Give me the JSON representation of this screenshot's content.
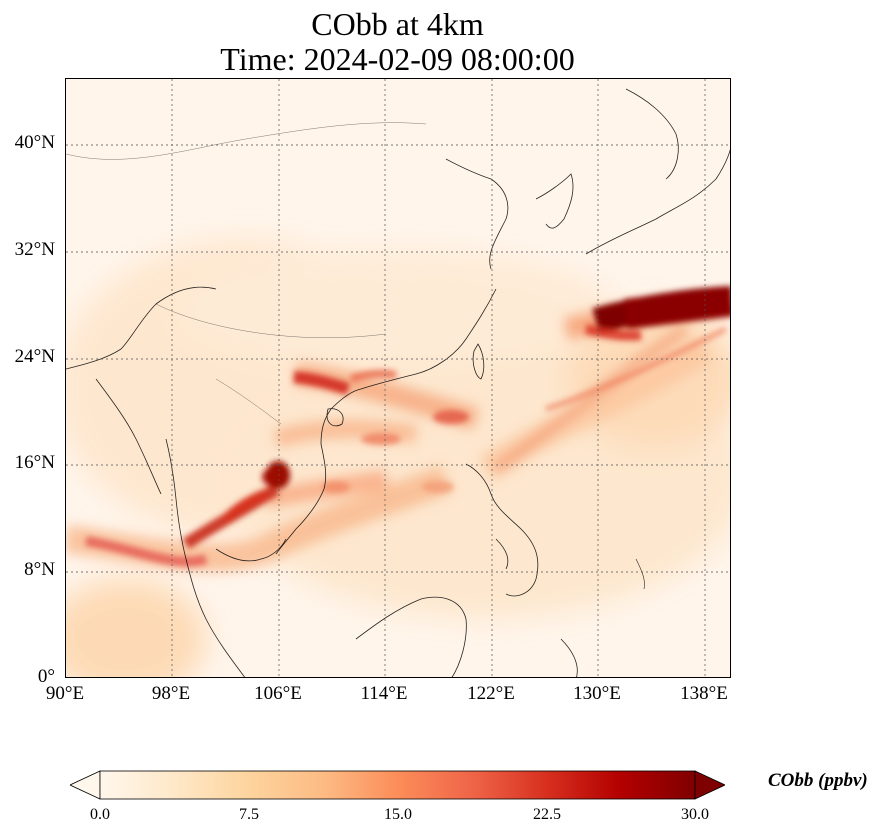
{
  "title": {
    "line1": "CObb at 4km",
    "line2": "Time: 2024-02-09 08:00:00"
  },
  "map": {
    "region": "East / Southeast Asia",
    "lon_range": [
      90,
      140
    ],
    "lat_range": [
      0,
      45
    ],
    "gridlines": "dotted",
    "x_ticks": [
      "90°E",
      "98°E",
      "106°E",
      "114°E",
      "122°E",
      "130°E",
      "138°E"
    ],
    "y_ticks": [
      "0°",
      "8°N",
      "16°N",
      "24°N",
      "32°N",
      "40°N"
    ]
  },
  "colorbar": {
    "label": "CObb (ppbv)",
    "colormap": "OrRd",
    "ticks": [
      "0.0",
      "7.5",
      "15.0",
      "22.5",
      "30.0"
    ],
    "range": [
      0,
      30
    ],
    "extend": "both"
  }
}
